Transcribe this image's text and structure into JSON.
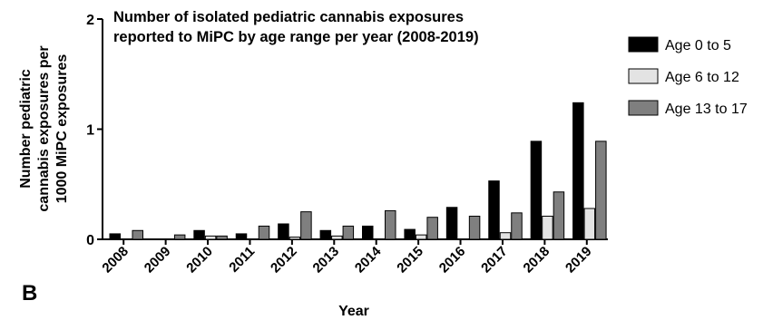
{
  "figure": {
    "panel_label": "B"
  },
  "colors": {
    "Age 0 to 5": "#000000",
    "Age 6 to 12": "#e3e3e3",
    "Age 13 to 17": "#7f7f7f"
  },
  "chart_data": {
    "type": "bar",
    "title_lines": [
      "Number of isolated pediatric cannabis exposures",
      "reported to MiPC by age range per year (2008-2019)"
    ],
    "ylabel_lines": [
      "Number pediatric",
      "cannabis exposures per",
      "1000 MiPC exposures"
    ],
    "xlabel": "Year",
    "ylim": [
      0,
      2
    ],
    "yticks": [
      "0",
      "1",
      "2"
    ],
    "categories": [
      "2008",
      "2009",
      "2010",
      "2011",
      "2012",
      "2013",
      "2014",
      "2015",
      "2016",
      "2017",
      "2018",
      "2019"
    ],
    "legend_position": "top-right",
    "series": [
      {
        "name": "Age 0 to 5",
        "values": [
          0.05,
          0.0,
          0.08,
          0.05,
          0.14,
          0.08,
          0.12,
          0.09,
          0.29,
          0.53,
          0.89,
          1.24
        ]
      },
      {
        "name": "Age 6 to 12",
        "values": [
          0.0,
          0.0,
          0.03,
          0.0,
          0.02,
          0.03,
          0.0,
          0.04,
          0.0,
          0.06,
          0.21,
          0.28
        ]
      },
      {
        "name": "Age 13 to 17",
        "values": [
          0.08,
          0.04,
          0.03,
          0.12,
          0.25,
          0.12,
          0.26,
          0.2,
          0.21,
          0.24,
          0.43,
          0.89
        ]
      }
    ]
  }
}
